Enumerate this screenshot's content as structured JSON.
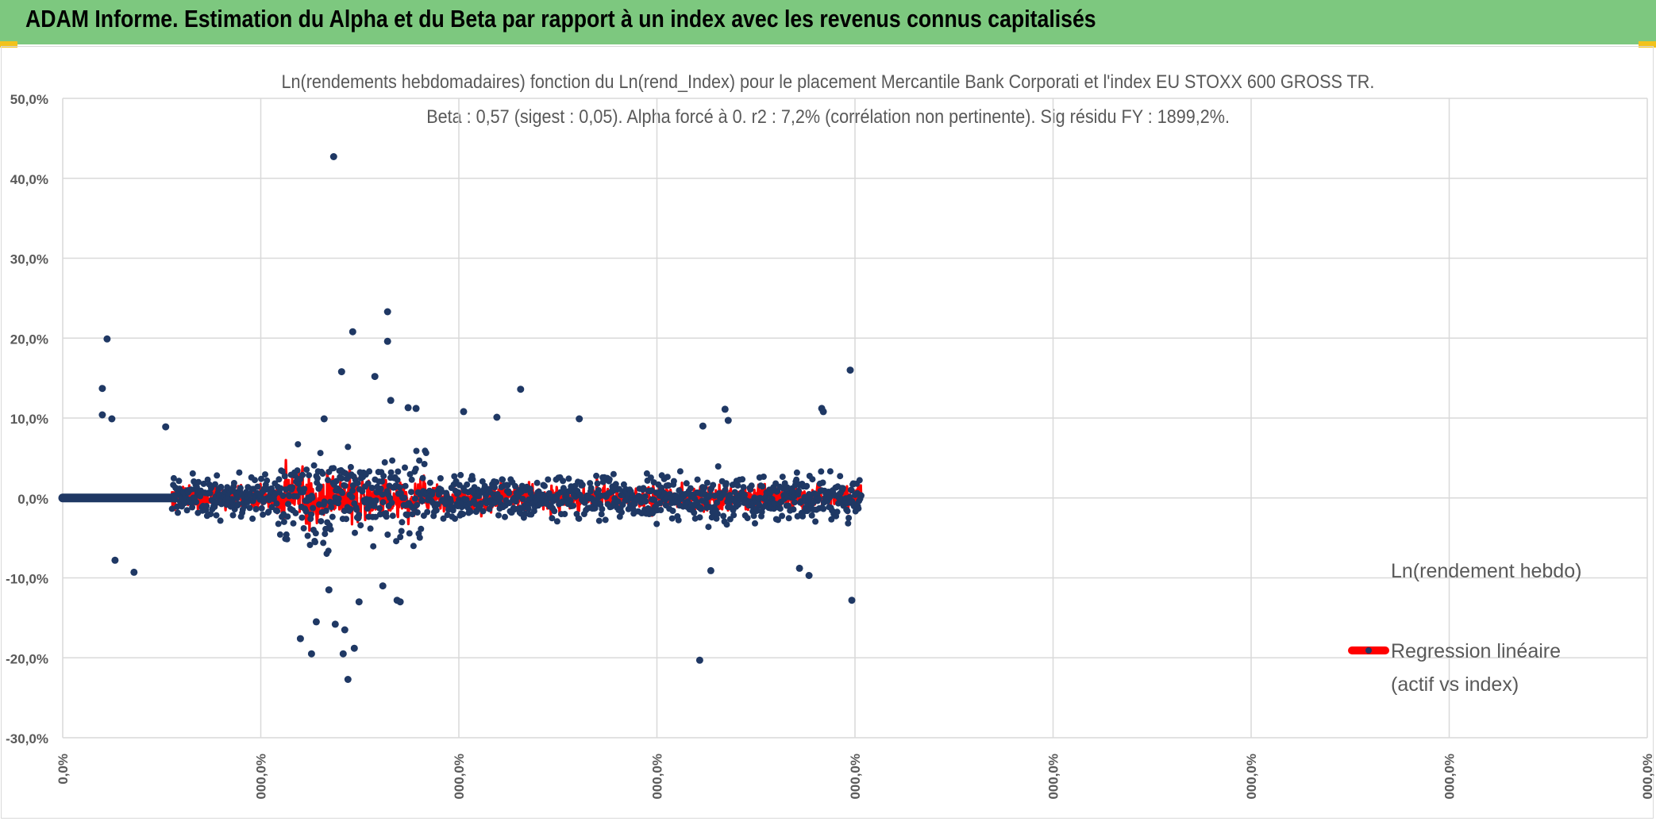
{
  "app": {
    "title": "ADAM Informe. Estimation du Alpha et du Beta par rapport à un index avec les revenus connus capitalisés"
  },
  "colors": {
    "header_bg": "#7dc87f",
    "series_points": "#1f3864",
    "series_regression": "#ff0000",
    "gridline": "#d9d9d9",
    "axis_text": "#595959"
  },
  "chart_data": {
    "type": "scatter",
    "title": "Ln(rendements hebdomadaires) fonction du Ln(rend_Index) pour le placement Mercantile Bank Corporati et l'index EU STOXX 600 GROSS TR.",
    "subtitle": "Beta : 0,57 (sigest : 0,05). Alpha forcé à 0. r2 : 7,2% (corrélation non pertinente). Sig résidu FY : 1899,2%.",
    "xlabel": "",
    "ylabel": "",
    "ylim": [
      -0.3,
      0.5
    ],
    "y_ticks": [
      "50,0%",
      "40,0%",
      "30,0%",
      "20,0%",
      "10,0%",
      "0,0%",
      "-10,0%",
      "-20,0%",
      "-30,0%"
    ],
    "x_ticks": [
      "0,0%",
      "000,0%",
      "000,0%",
      "000,0%",
      "000,0%",
      "000,0%",
      "000,0%",
      "000,0%",
      "000,0%"
    ],
    "grid": true,
    "legend_position": "right",
    "series": [
      {
        "name": "Ln(rendement hebdo)",
        "marker": "circle",
        "color": "#1f3864",
        "outliers": [
          {
            "x": 0.025,
            "y": 0.137
          },
          {
            "x": 0.025,
            "y": 0.104
          },
          {
            "x": 0.028,
            "y": 0.199
          },
          {
            "x": 0.031,
            "y": 0.099
          },
          {
            "x": 0.033,
            "y": -0.078
          },
          {
            "x": 0.045,
            "y": -0.093
          },
          {
            "x": 0.065,
            "y": 0.089
          },
          {
            "x": 0.15,
            "y": -0.176
          },
          {
            "x": 0.157,
            "y": -0.195
          },
          {
            "x": 0.16,
            "y": -0.155
          },
          {
            "x": 0.165,
            "y": 0.099
          },
          {
            "x": 0.168,
            "y": -0.115
          },
          {
            "x": 0.171,
            "y": 0.427
          },
          {
            "x": 0.172,
            "y": -0.158
          },
          {
            "x": 0.176,
            "y": 0.158
          },
          {
            "x": 0.177,
            "y": -0.195
          },
          {
            "x": 0.178,
            "y": -0.165
          },
          {
            "x": 0.18,
            "y": -0.227
          },
          {
            "x": 0.183,
            "y": 0.208
          },
          {
            "x": 0.184,
            "y": -0.188
          },
          {
            "x": 0.187,
            "y": -0.13
          },
          {
            "x": 0.197,
            "y": 0.152
          },
          {
            "x": 0.202,
            "y": -0.11
          },
          {
            "x": 0.205,
            "y": 0.196
          },
          {
            "x": 0.205,
            "y": 0.233
          },
          {
            "x": 0.207,
            "y": 0.122
          },
          {
            "x": 0.211,
            "y": -0.128
          },
          {
            "x": 0.213,
            "y": -0.13
          },
          {
            "x": 0.218,
            "y": 0.113
          },
          {
            "x": 0.223,
            "y": 0.112
          },
          {
            "x": 0.253,
            "y": 0.108
          },
          {
            "x": 0.274,
            "y": 0.101
          },
          {
            "x": 0.289,
            "y": 0.136
          },
          {
            "x": 0.326,
            "y": 0.099
          },
          {
            "x": 0.402,
            "y": -0.203
          },
          {
            "x": 0.404,
            "y": 0.09
          },
          {
            "x": 0.409,
            "y": -0.091
          },
          {
            "x": 0.418,
            "y": 0.111
          },
          {
            "x": 0.42,
            "y": 0.097
          },
          {
            "x": 0.465,
            "y": -0.088
          },
          {
            "x": 0.471,
            "y": -0.097
          },
          {
            "x": 0.479,
            "y": 0.112
          },
          {
            "x": 0.48,
            "y": 0.108
          },
          {
            "x": 0.497,
            "y": 0.16
          },
          {
            "x": 0.498,
            "y": -0.128
          }
        ]
      },
      {
        "name": "Regression linéaire (actif vs index)",
        "marker": "line",
        "color": "#ff0000",
        "beta": 0.57,
        "alpha": 0
      }
    ]
  }
}
